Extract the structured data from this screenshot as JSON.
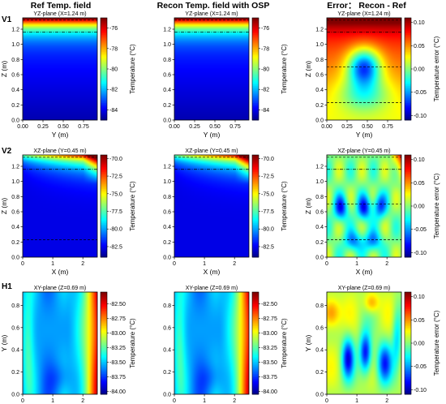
{
  "column_titles": [
    "Ref Temp. field",
    "Recon Temp. field with OSP",
    "Error：  Recon - Ref"
  ],
  "row_labels": [
    "V1",
    "V2",
    "H1"
  ],
  "chart_data": [
    {
      "type": "heatmap",
      "row": "V1",
      "col": 0,
      "kind": "temp_v1",
      "title": "YZ-plane (X=1.24 m)",
      "xlabel": "Y (m)",
      "ylabel": "Z (m)",
      "xlim": [
        0,
        0.92
      ],
      "ylim": [
        0,
        1.35
      ],
      "xticks": [
        "0.00",
        "0.25",
        "0.50",
        "0.75"
      ],
      "xtick_values": [
        0,
        0.25,
        0.5,
        0.75
      ],
      "yticks": [
        "0.0",
        "0.2",
        "0.4",
        "0.6",
        "0.8",
        "1.0",
        "1.2"
      ],
      "ytick_values": [
        0,
        0.2,
        0.4,
        0.6,
        0.8,
        1.0,
        1.2
      ],
      "colorbar": {
        "label": "Temperature (°C)",
        "range": [
          -85,
          -75
        ],
        "ticks": [
          "-76",
          "-78",
          "-80",
          "-82",
          "-84"
        ],
        "tick_values": [
          -76,
          -78,
          -80,
          -82,
          -84
        ],
        "colormap": "jet"
      },
      "lines": [
        {
          "style": "dashed",
          "value": 1.32
        },
        {
          "style": "dashdot",
          "value": 1.16
        }
      ]
    },
    {
      "type": "heatmap",
      "row": "V1",
      "col": 1,
      "kind": "temp_v1",
      "title": "YZ-plane (X=1.24 m)",
      "xlabel": "Y (m)",
      "ylabel": "",
      "xlim": [
        0,
        0.92
      ],
      "ylim": [
        0,
        1.35
      ],
      "xticks": [
        "0.00",
        "0.25",
        "0.50",
        "0.75"
      ],
      "xtick_values": [
        0,
        0.25,
        0.5,
        0.75
      ],
      "yticks": [
        "0.0",
        "0.2",
        "0.4",
        "0.6",
        "0.8",
        "1.0",
        "1.2"
      ],
      "ytick_values": [
        0,
        0.2,
        0.4,
        0.6,
        0.8,
        1.0,
        1.2
      ],
      "colorbar": {
        "label": "Temperature (°C)",
        "range": [
          -85,
          -75
        ],
        "ticks": [
          "-76",
          "-78",
          "-80",
          "-82",
          "-84"
        ],
        "tick_values": [
          -76,
          -78,
          -80,
          -82,
          -84
        ],
        "colormap": "jet"
      },
      "lines": [
        {
          "style": "dashed",
          "value": 1.32
        },
        {
          "style": "dashdot",
          "value": 1.16
        }
      ]
    },
    {
      "type": "heatmap",
      "row": "V1",
      "col": 2,
      "kind": "err_v1",
      "title": "YZ-plane (X=1.24 m)",
      "xlabel": "Y (m)",
      "ylabel": "Z (m)",
      "xlim": [
        0,
        0.92
      ],
      "ylim": [
        0,
        1.35
      ],
      "xticks": [
        "0.00",
        "0.25",
        "0.50",
        "0.75"
      ],
      "xtick_values": [
        0,
        0.25,
        0.5,
        0.75
      ],
      "yticks": [
        "0.0",
        "0.2",
        "0.4",
        "0.6",
        "0.8",
        "1.0",
        "1.2"
      ],
      "ytick_values": [
        0,
        0.2,
        0.4,
        0.6,
        0.8,
        1.0,
        1.2
      ],
      "colorbar": {
        "label": "Temperature error (°C)",
        "range": [
          -0.11,
          0.11
        ],
        "ticks": [
          "0.10",
          "0.05",
          "0.00",
          "-0.05",
          "-0.10"
        ],
        "tick_values": [
          0.1,
          0.05,
          0,
          -0.05,
          -0.1
        ],
        "colormap": "jet"
      },
      "lines": [
        {
          "style": "dashed",
          "value": 1.32
        },
        {
          "style": "dashdot",
          "value": 1.16
        },
        {
          "style": "dashed",
          "value": 0.7
        },
        {
          "style": "dashed",
          "value": 0.23
        }
      ]
    },
    {
      "type": "heatmap",
      "row": "V2",
      "col": 0,
      "kind": "temp_v2",
      "title": "XZ-plane (Y=0.45 m)",
      "xlabel": "X (m)",
      "ylabel": "Z (m)",
      "xlim": [
        0,
        2.48
      ],
      "ylim": [
        0,
        1.35
      ],
      "xticks": [
        "0",
        "1",
        "2"
      ],
      "xtick_values": [
        0,
        1,
        2
      ],
      "yticks": [
        "0.0",
        "0.2",
        "0.4",
        "0.6",
        "0.8",
        "1.0",
        "1.2"
      ],
      "ytick_values": [
        0,
        0.2,
        0.4,
        0.6,
        0.8,
        1.0,
        1.2
      ],
      "colorbar": {
        "label": "Temperature (°C)",
        "range": [
          -84,
          -69.5
        ],
        "ticks": [
          "-70.0",
          "-72.5",
          "-75.0",
          "-77.5",
          "-80.0",
          "-82.5"
        ],
        "tick_values": [
          -70,
          -72.5,
          -75,
          -77.5,
          -80,
          -82.5
        ],
        "colormap": "jet"
      },
      "lines": [
        {
          "style": "dashed",
          "value": 1.32
        },
        {
          "style": "dashdot",
          "value": 1.16
        },
        {
          "style": "dashed",
          "value": 0.23
        }
      ]
    },
    {
      "type": "heatmap",
      "row": "V2",
      "col": 1,
      "kind": "temp_v2",
      "title": "XZ-plane (Y=0.45 m)",
      "xlabel": "X (m)",
      "ylabel": "",
      "xlim": [
        0,
        2.48
      ],
      "ylim": [
        0,
        1.35
      ],
      "xticks": [
        "0",
        "1",
        "2"
      ],
      "xtick_values": [
        0,
        1,
        2
      ],
      "yticks": [
        "0.0",
        "0.2",
        "0.4",
        "0.6",
        "0.8",
        "1.0",
        "1.2"
      ],
      "ytick_values": [
        0,
        0.2,
        0.4,
        0.6,
        0.8,
        1.0,
        1.2
      ],
      "colorbar": {
        "label": "Temperature (°C)",
        "range": [
          -84,
          -69.5
        ],
        "ticks": [
          "-70.0",
          "-72.5",
          "-75.0",
          "-77.5",
          "-80.0",
          "-82.5"
        ],
        "tick_values": [
          -70,
          -72.5,
          -75,
          -77.5,
          -80,
          -82.5
        ],
        "colormap": "jet"
      },
      "lines": [
        {
          "style": "dashed",
          "value": 1.32
        },
        {
          "style": "dashdot",
          "value": 1.16
        }
      ]
    },
    {
      "type": "heatmap",
      "row": "V2",
      "col": 2,
      "kind": "err_v2",
      "title": "XZ-plane (Y=0.45 m)",
      "xlabel": "X (m)",
      "ylabel": "Z (m)",
      "xlim": [
        0,
        2.48
      ],
      "ylim": [
        0,
        1.35
      ],
      "xticks": [
        "0",
        "1",
        "2"
      ],
      "xtick_values": [
        0,
        1,
        2
      ],
      "yticks": [
        "0.0",
        "0.2",
        "0.4",
        "0.6",
        "0.8",
        "1.0",
        "1.2"
      ],
      "ytick_values": [
        0,
        0.2,
        0.4,
        0.6,
        0.8,
        1.0,
        1.2
      ],
      "colorbar": {
        "label": "Temperature error (°C)",
        "range": [
          -0.11,
          0.11
        ],
        "ticks": [
          "0.10",
          "0.05",
          "0.00",
          "-0.05",
          "-0.10"
        ],
        "tick_values": [
          0.1,
          0.05,
          0,
          -0.05,
          -0.1
        ],
        "colormap": "jet"
      },
      "lines": [
        {
          "style": "dashed",
          "value": 1.32
        },
        {
          "style": "dashdot",
          "value": 1.16
        },
        {
          "style": "dashed",
          "value": 0.7
        },
        {
          "style": "dashed",
          "value": 0.23
        }
      ]
    },
    {
      "type": "heatmap",
      "row": "H1",
      "col": 0,
      "kind": "temp_h1",
      "title": "XY-plane (Z=0.69 m)",
      "xlabel": "X (m)",
      "ylabel": "Y (m)",
      "xlim": [
        0,
        2.48
      ],
      "ylim": [
        0,
        0.92
      ],
      "xticks": [
        "0",
        "1",
        "2"
      ],
      "xtick_values": [
        0,
        1,
        2
      ],
      "yticks": [
        "0.0",
        "0.2",
        "0.4",
        "0.6",
        "0.8"
      ],
      "ytick_values": [
        0,
        0.2,
        0.4,
        0.6,
        0.8
      ],
      "colorbar": {
        "label": "Temperature (°C)",
        "range": [
          -84.05,
          -82.3
        ],
        "ticks": [
          "-82.50",
          "-82.75",
          "-83.00",
          "-83.25",
          "-83.50",
          "-83.75",
          "-84.00"
        ],
        "tick_values": [
          -82.5,
          -82.75,
          -83,
          -83.25,
          -83.5,
          -83.75,
          -84
        ],
        "colormap": "jet"
      },
      "lines": []
    },
    {
      "type": "heatmap",
      "row": "H1",
      "col": 1,
      "kind": "temp_h1",
      "title": "XY-plane (Z=0.69 m)",
      "xlabel": "X (m)",
      "ylabel": "",
      "xlim": [
        0,
        2.48
      ],
      "ylim": [
        0,
        0.92
      ],
      "xticks": [
        "0",
        "1",
        "2"
      ],
      "xtick_values": [
        0,
        1,
        2
      ],
      "yticks": [
        "0.0",
        "0.2",
        "0.4",
        "0.6",
        "0.8"
      ],
      "ytick_values": [
        0,
        0.2,
        0.4,
        0.6,
        0.8
      ],
      "colorbar": {
        "label": "Temperature (°C)",
        "range": [
          -84.05,
          -82.3
        ],
        "ticks": [
          "-82.50",
          "-82.75",
          "-83.00",
          "-83.25",
          "-83.50",
          "-83.75",
          "-84.00"
        ],
        "tick_values": [
          -82.5,
          -82.75,
          -83,
          -83.25,
          -83.5,
          -83.75,
          -84
        ],
        "colormap": "jet"
      },
      "lines": []
    },
    {
      "type": "heatmap",
      "row": "H1",
      "col": 2,
      "kind": "err_h1",
      "title": "XY-plane (Z=0.69 m)",
      "xlabel": "X (m)",
      "ylabel": "Y (m)",
      "xlim": [
        0,
        2.48
      ],
      "ylim": [
        0,
        0.92
      ],
      "xticks": [
        "0",
        "1",
        "2"
      ],
      "xtick_values": [
        0,
        1,
        2
      ],
      "yticks": [
        "0.0",
        "0.2",
        "0.4",
        "0.6",
        "0.8"
      ],
      "ytick_values": [
        0,
        0.2,
        0.4,
        0.6,
        0.8
      ],
      "colorbar": {
        "label": "Temperature error (°C)",
        "range": [
          -0.11,
          0.11
        ],
        "ticks": [
          "0.10",
          "0.05",
          "0.00",
          "-0.05",
          "-0.10"
        ],
        "tick_values": [
          0.1,
          0.05,
          0,
          -0.05,
          -0.1
        ],
        "colormap": "jet"
      },
      "lines": []
    }
  ]
}
